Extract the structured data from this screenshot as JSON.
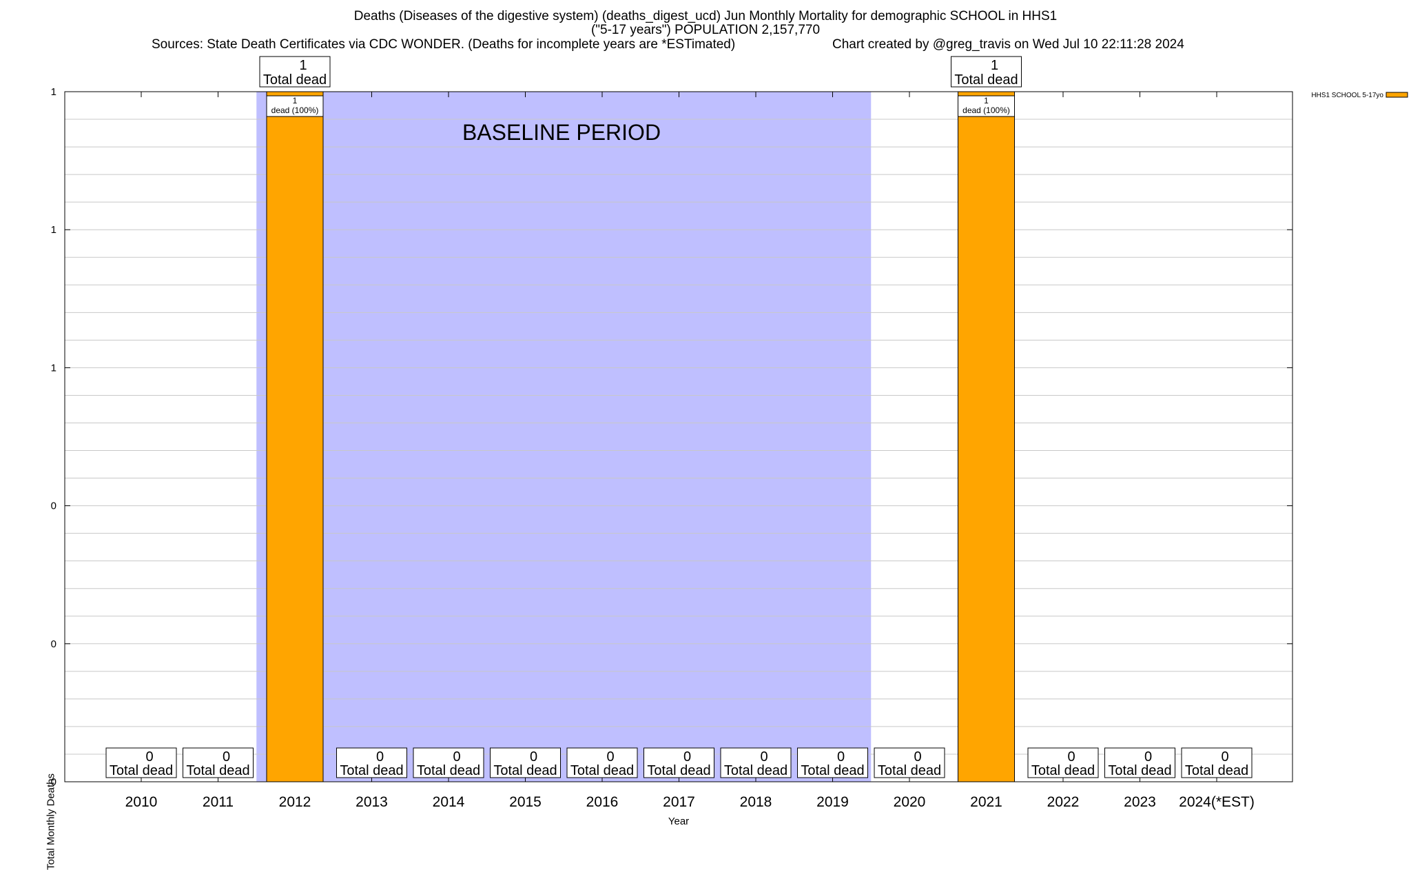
{
  "title": {
    "line1": "Deaths (Diseases of the digestive system) (deaths_digest_ucd) Jun Monthly Mortality for demographic SCHOOL in HHS1",
    "line2": "(\"5-17 years\") POPULATION 2,157,770",
    "sources": "Sources: State Death Certificates via CDC WONDER. (Deaths for incomplete years are *ESTimated)",
    "credit": "Chart created by @greg_travis on Wed Jul 10 22:11:28 2024"
  },
  "colors": {
    "bar": "#ffa500",
    "baseline": "#bfbfff",
    "grid": "#c8c8c8"
  },
  "chart_data": {
    "type": "bar",
    "xlabel": "Year",
    "ylabel": "Total Monthly Deaths",
    "ylim": [
      0,
      1
    ],
    "y_tick_labels": [
      "0",
      "0",
      "0",
      "1",
      "1",
      "1"
    ],
    "categories": [
      "2010",
      "2011",
      "2012",
      "2013",
      "2014",
      "2015",
      "2016",
      "2017",
      "2018",
      "2019",
      "2020",
      "2021",
      "2022",
      "2023",
      "2024(*EST)"
    ],
    "series": [
      {
        "name": "HHS1 SCHOOL 5-17yo",
        "values": [
          0,
          0,
          1,
          0,
          0,
          0,
          0,
          0,
          0,
          0,
          0,
          1,
          0,
          0,
          0
        ]
      }
    ],
    "total_label_word": "Total dead",
    "bar_label_word": "dead (100%)",
    "baseline_label": "BASELINE PERIOD",
    "baseline_range": [
      "2012",
      "2019"
    ],
    "legend_position": "top-right",
    "grid": true
  }
}
